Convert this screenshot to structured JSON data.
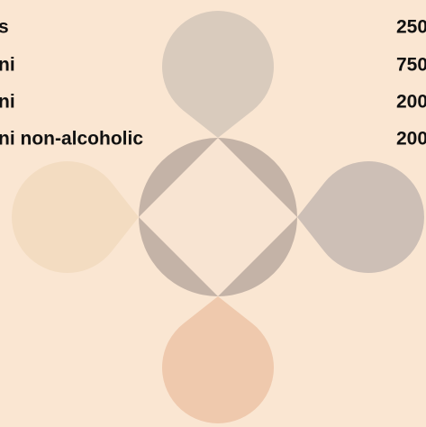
{
  "menu": {
    "items": [
      {
        "name": "s",
        "price": "250"
      },
      {
        "name": "ni",
        "price": "750"
      },
      {
        "name": "ni",
        "price": "200"
      },
      {
        "name": "ni non-alcoholic",
        "price": "200"
      }
    ]
  }
}
